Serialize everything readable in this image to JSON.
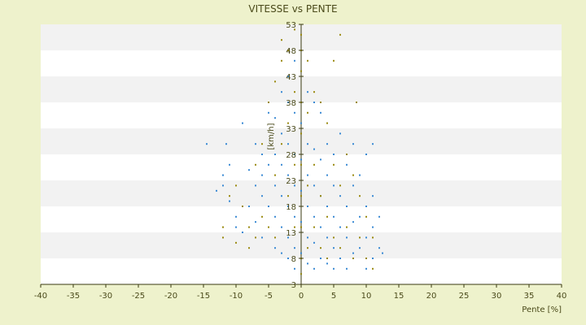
{
  "chart_data": {
    "type": "scatter",
    "title": "VITESSE vs PENTE",
    "xlabel": "Pente [%]",
    "ylabel": "[km/h]",
    "xlim": [
      -40,
      40
    ],
    "ylim": [
      3,
      53
    ],
    "xticks": [
      "-40",
      "-35",
      "-30",
      "-25",
      "-20",
      "-15",
      "-10",
      "-5",
      "0",
      "5",
      "10",
      "15",
      "20",
      "25",
      "30",
      "35",
      "40"
    ],
    "yticks": [
      "3",
      "8",
      "13",
      "18",
      "23",
      "28",
      "33",
      "38",
      "43",
      "48",
      "53"
    ],
    "grid": "horizontal bands",
    "legend": "none",
    "colors": {
      "background": "#eef2cc",
      "plot_band_light": "#ffffff",
      "plot_band_dark": "#f2f2f2",
      "axis": "#3a3a10",
      "series_blue": "#3a8ad4",
      "series_olive": "#9a8a10"
    },
    "series": [
      {
        "key": "blue",
        "color": "#3a8ad4",
        "points": [
          [
            -14.5,
            30
          ],
          [
            -12,
            24
          ],
          [
            -12,
            22
          ],
          [
            -13,
            21
          ],
          [
            -11,
            26
          ],
          [
            -11.5,
            30
          ],
          [
            -11,
            19
          ],
          [
            -10,
            16
          ],
          [
            -10,
            14
          ],
          [
            -9,
            34
          ],
          [
            -9,
            13
          ],
          [
            -8,
            25
          ],
          [
            -8,
            18
          ],
          [
            -7,
            30
          ],
          [
            -7,
            22
          ],
          [
            -7,
            15
          ],
          [
            -6,
            28
          ],
          [
            -6,
            24
          ],
          [
            -6,
            20
          ],
          [
            -6,
            12
          ],
          [
            -5,
            36
          ],
          [
            -5,
            26
          ],
          [
            -5,
            18
          ],
          [
            -4,
            35
          ],
          [
            -4,
            28
          ],
          [
            -4,
            22
          ],
          [
            -4,
            16
          ],
          [
            -4,
            10
          ],
          [
            -3,
            40
          ],
          [
            -3,
            32
          ],
          [
            -3,
            26
          ],
          [
            -3,
            20
          ],
          [
            -3,
            14
          ],
          [
            -3,
            9
          ],
          [
            -2,
            43
          ],
          [
            -2,
            38
          ],
          [
            -2,
            30
          ],
          [
            -2,
            24
          ],
          [
            -2,
            18
          ],
          [
            -2,
            12
          ],
          [
            -2,
            8
          ],
          [
            -1,
            46
          ],
          [
            -1,
            36
          ],
          [
            -1,
            28
          ],
          [
            -1,
            22
          ],
          [
            -1,
            16
          ],
          [
            -1,
            10
          ],
          [
            -1,
            6
          ],
          [
            0,
            44
          ],
          [
            0,
            34
          ],
          [
            0,
            27
          ],
          [
            0,
            21
          ],
          [
            0,
            15
          ],
          [
            0,
            9
          ],
          [
            0,
            5
          ],
          [
            1,
            40
          ],
          [
            1,
            30
          ],
          [
            1,
            24
          ],
          [
            1,
            18
          ],
          [
            1,
            12
          ],
          [
            1,
            7
          ],
          [
            2,
            38
          ],
          [
            2,
            29
          ],
          [
            2,
            22
          ],
          [
            2,
            16
          ],
          [
            2,
            11
          ],
          [
            2,
            6
          ],
          [
            3,
            36
          ],
          [
            3,
            27
          ],
          [
            3,
            20
          ],
          [
            3,
            14
          ],
          [
            3,
            8
          ],
          [
            4,
            30
          ],
          [
            4,
            24
          ],
          [
            4,
            18
          ],
          [
            4,
            12
          ],
          [
            4,
            7
          ],
          [
            5,
            28
          ],
          [
            5,
            22
          ],
          [
            5,
            16
          ],
          [
            5,
            10
          ],
          [
            5,
            6
          ],
          [
            6,
            32
          ],
          [
            6,
            20
          ],
          [
            6,
            14
          ],
          [
            6,
            8
          ],
          [
            7,
            26
          ],
          [
            7,
            18
          ],
          [
            7,
            12
          ],
          [
            7,
            6
          ],
          [
            8,
            30
          ],
          [
            8,
            22
          ],
          [
            8,
            15
          ],
          [
            8,
            9
          ],
          [
            9,
            24
          ],
          [
            9,
            16
          ],
          [
            9,
            10
          ],
          [
            10,
            28
          ],
          [
            10,
            18
          ],
          [
            10,
            12
          ],
          [
            10,
            6
          ],
          [
            11,
            30
          ],
          [
            11,
            20
          ],
          [
            11,
            14
          ],
          [
            11,
            8
          ],
          [
            12,
            16
          ],
          [
            12,
            10
          ],
          [
            12.5,
            9
          ]
        ]
      },
      {
        "key": "olive",
        "color": "#9a8a10",
        "points": [
          [
            -12,
            14
          ],
          [
            -12,
            12
          ],
          [
            -11,
            20
          ],
          [
            -10,
            22
          ],
          [
            -10,
            11
          ],
          [
            -9,
            18
          ],
          [
            -8,
            14
          ],
          [
            -8,
            10
          ],
          [
            -7,
            26
          ],
          [
            -7,
            12
          ],
          [
            -6,
            30
          ],
          [
            -6,
            16
          ],
          [
            -5,
            38
          ],
          [
            -5,
            14
          ],
          [
            -4,
            42
          ],
          [
            -4,
            24
          ],
          [
            -4,
            12
          ],
          [
            -3,
            50
          ],
          [
            -3,
            46
          ],
          [
            -3,
            30
          ],
          [
            -2,
            48
          ],
          [
            -2,
            34
          ],
          [
            -2,
            20
          ],
          [
            -1,
            52
          ],
          [
            -1,
            40
          ],
          [
            -1,
            26
          ],
          [
            -1,
            14
          ],
          [
            0,
            51
          ],
          [
            0,
            48
          ],
          [
            0,
            44
          ],
          [
            0,
            38
          ],
          [
            0,
            32
          ],
          [
            0,
            26
          ],
          [
            0,
            20
          ],
          [
            0,
            14
          ],
          [
            0,
            8
          ],
          [
            0,
            5
          ],
          [
            1,
            46
          ],
          [
            1,
            36
          ],
          [
            1,
            22
          ],
          [
            1,
            10
          ],
          [
            2,
            40
          ],
          [
            2,
            26
          ],
          [
            2,
            14
          ],
          [
            3,
            38
          ],
          [
            3,
            20
          ],
          [
            3,
            10
          ],
          [
            4,
            34
          ],
          [
            4,
            16
          ],
          [
            4,
            8
          ],
          [
            5,
            46
          ],
          [
            5,
            26
          ],
          [
            5,
            12
          ],
          [
            6,
            51
          ],
          [
            6,
            22
          ],
          [
            6,
            10
          ],
          [
            7,
            28
          ],
          [
            7,
            14
          ],
          [
            8,
            24
          ],
          [
            8,
            8
          ],
          [
            8.5,
            38
          ],
          [
            9,
            20
          ],
          [
            9,
            12
          ],
          [
            10,
            16
          ],
          [
            10,
            8
          ],
          [
            11,
            12
          ],
          [
            11,
            6
          ]
        ]
      }
    ]
  }
}
